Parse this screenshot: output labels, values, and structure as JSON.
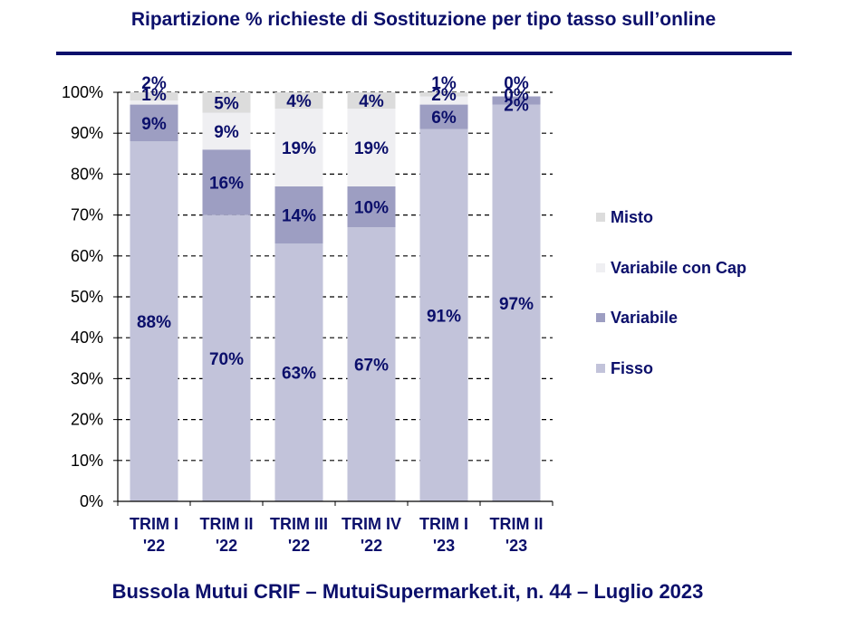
{
  "title": "Ripartizione %  richieste di Sostituzione per tipo tasso sull’online",
  "footer": "Bussola Mutui CRIF – MutuiSupermarket.it, n. 44 – Luglio 2023",
  "colors": {
    "text": "#0b0f6b",
    "Fisso": "#c2c3da",
    "Variabile": "#9d9ec2",
    "Variabile con Cap": "#efeff2",
    "Misto": "#dcdcdc"
  },
  "chart_data": {
    "type": "bar",
    "stacked": true,
    "categories": [
      [
        "TRIM I",
        "'22"
      ],
      [
        "TRIM II",
        "'22"
      ],
      [
        "TRIM III",
        "'22"
      ],
      [
        "TRIM IV",
        "'22"
      ],
      [
        "TRIM I",
        "'23"
      ],
      [
        "TRIM II",
        "'23"
      ]
    ],
    "series": [
      {
        "name": "Fisso",
        "values": [
          88,
          70,
          63,
          67,
          91,
          97
        ],
        "labels": [
          "88%",
          "70%",
          "63%",
          "67%",
          "91%",
          "97%"
        ]
      },
      {
        "name": "Variabile",
        "values": [
          9,
          16,
          14,
          10,
          6,
          2
        ],
        "labels": [
          "9%",
          "16%",
          "14%",
          "10%",
          "6%",
          "2%"
        ]
      },
      {
        "name": "Variabile con Cap",
        "values": [
          1,
          9,
          19,
          19,
          2,
          0
        ],
        "labels": [
          "1%",
          "9%",
          "19%",
          "19%",
          "2%",
          "0%"
        ]
      },
      {
        "name": "Misto",
        "values": [
          2,
          5,
          4,
          4,
          1,
          0
        ],
        "labels": [
          "2%",
          "5%",
          "4%",
          "4%",
          "1%",
          "0%"
        ]
      }
    ],
    "yticks": [
      "0%",
      "10%",
      "20%",
      "30%",
      "40%",
      "50%",
      "60%",
      "70%",
      "80%",
      "90%",
      "100%"
    ],
    "ylim": [
      0,
      100
    ],
    "grid": "dashed horizontal",
    "legend": "right",
    "legend_order": [
      "Misto",
      "Variabile con Cap",
      "Variabile",
      "Fisso"
    ]
  }
}
